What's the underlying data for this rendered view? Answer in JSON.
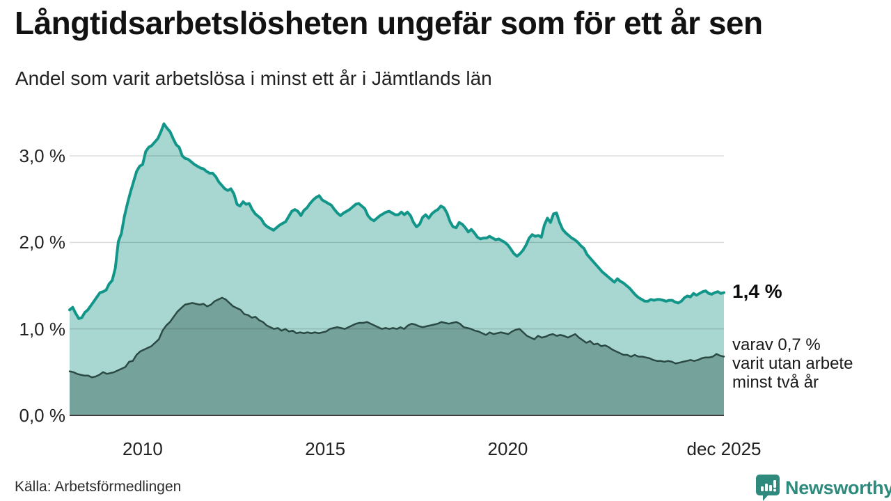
{
  "header": {
    "title": "Långtidsarbetslösheten ungefär som för ett år sen",
    "subtitle": "Andel som varit arbetslösa i minst ett år i Jämtlands län"
  },
  "chart_data": {
    "type": "area",
    "title": "Långtidsarbetslösheten ungefär som för ett år sen",
    "subtitle": "Andel som varit arbetslösa i minst ett år i Jämtlands län",
    "xlabel": "",
    "ylabel": "",
    "unit": "%",
    "grid": true,
    "legend": "none",
    "x_start": 2008.0,
    "x_end": 2025.92,
    "ylim": [
      0,
      3.5
    ],
    "x_ticks": [
      {
        "label": "2010",
        "year": 2010.0
      },
      {
        "label": "2015",
        "year": 2015.0
      },
      {
        "label": "2020",
        "year": 2020.0
      },
      {
        "label": "dec 2025",
        "year": 2025.92
      }
    ],
    "y_ticks": [
      {
        "label": "0,0 %",
        "value": 0
      },
      {
        "label": "1,0 %",
        "value": 1
      },
      {
        "label": "2,0 %",
        "value": 2
      },
      {
        "label": "3,0 %",
        "value": 3
      }
    ],
    "series": [
      {
        "name": "Arbetslösa minst ett år",
        "line_color": "#12968a",
        "fill_color": "#a8d7d1",
        "line_width": 4,
        "last_value": 1.4,
        "values": [
          1.22,
          1.25,
          1.18,
          1.12,
          1.13,
          1.19,
          1.22,
          1.27,
          1.32,
          1.37,
          1.42,
          1.43,
          1.45,
          1.52,
          1.56,
          1.7,
          2.01,
          2.1,
          2.3,
          2.45,
          2.58,
          2.7,
          2.82,
          2.88,
          2.9,
          3.05,
          3.1,
          3.12,
          3.16,
          3.2,
          3.28,
          3.37,
          3.32,
          3.28,
          3.2,
          3.13,
          3.1,
          3.0,
          2.97,
          2.96,
          2.93,
          2.9,
          2.88,
          2.86,
          2.85,
          2.82,
          2.8,
          2.8,
          2.76,
          2.7,
          2.66,
          2.62,
          2.6,
          2.62,
          2.56,
          2.44,
          2.42,
          2.47,
          2.44,
          2.45,
          2.38,
          2.33,
          2.3,
          2.27,
          2.21,
          2.18,
          2.16,
          2.14,
          2.17,
          2.2,
          2.22,
          2.24,
          2.3,
          2.36,
          2.38,
          2.36,
          2.31,
          2.37,
          2.4,
          2.45,
          2.49,
          2.52,
          2.54,
          2.49,
          2.47,
          2.45,
          2.43,
          2.38,
          2.34,
          2.31,
          2.34,
          2.36,
          2.38,
          2.41,
          2.44,
          2.45,
          2.42,
          2.39,
          2.31,
          2.27,
          2.25,
          2.28,
          2.31,
          2.33,
          2.35,
          2.36,
          2.34,
          2.32,
          2.32,
          2.35,
          2.32,
          2.35,
          2.31,
          2.23,
          2.18,
          2.21,
          2.29,
          2.32,
          2.28,
          2.33,
          2.36,
          2.38,
          2.42,
          2.4,
          2.34,
          2.24,
          2.18,
          2.17,
          2.23,
          2.21,
          2.17,
          2.12,
          2.15,
          2.11,
          2.06,
          2.04,
          2.05,
          2.05,
          2.07,
          2.05,
          2.03,
          2.04,
          2.02,
          2.0,
          1.97,
          1.92,
          1.87,
          1.84,
          1.87,
          1.91,
          1.97,
          2.05,
          2.09,
          2.07,
          2.08,
          2.06,
          2.2,
          2.28,
          2.23,
          2.33,
          2.34,
          2.23,
          2.15,
          2.11,
          2.08,
          2.05,
          2.03,
          2.0,
          1.96,
          1.93,
          1.86,
          1.82,
          1.78,
          1.74,
          1.7,
          1.66,
          1.63,
          1.6,
          1.57,
          1.54,
          1.58,
          1.55,
          1.53,
          1.5,
          1.47,
          1.43,
          1.39,
          1.36,
          1.34,
          1.32,
          1.32,
          1.34,
          1.33,
          1.34,
          1.34,
          1.33,
          1.32,
          1.33,
          1.33,
          1.31,
          1.3,
          1.32,
          1.36,
          1.38,
          1.37,
          1.41,
          1.39,
          1.41,
          1.43,
          1.44,
          1.41,
          1.4,
          1.42,
          1.43,
          1.41,
          1.42
        ]
      },
      {
        "name": "Arbetslösa minst två år",
        "line_color": "#2b4a44",
        "fill_color": "#75a29b",
        "line_width": 2.5,
        "last_value": 0.7,
        "values": [
          0.51,
          0.5,
          0.48,
          0.47,
          0.46,
          0.46,
          0.44,
          0.45,
          0.47,
          0.5,
          0.48,
          0.49,
          0.5,
          0.52,
          0.54,
          0.56,
          0.62,
          0.63,
          0.7,
          0.74,
          0.76,
          0.78,
          0.8,
          0.84,
          0.88,
          0.98,
          1.04,
          1.08,
          1.14,
          1.2,
          1.24,
          1.28,
          1.29,
          1.3,
          1.29,
          1.28,
          1.29,
          1.26,
          1.28,
          1.32,
          1.34,
          1.36,
          1.34,
          1.3,
          1.26,
          1.24,
          1.22,
          1.17,
          1.16,
          1.13,
          1.14,
          1.1,
          1.08,
          1.04,
          1.02,
          1.0,
          1.01,
          0.98,
          1.0,
          0.97,
          0.98,
          0.95,
          0.96,
          0.95,
          0.96,
          0.95,
          0.96,
          0.95,
          0.96,
          0.97,
          1.0,
          1.01,
          1.02,
          1.01,
          1.0,
          1.02,
          1.04,
          1.06,
          1.07,
          1.07,
          1.08,
          1.06,
          1.04,
          1.02,
          1.0,
          1.01,
          1.0,
          1.01,
          1.0,
          1.02,
          1.0,
          1.04,
          1.06,
          1.05,
          1.03,
          1.02,
          1.03,
          1.04,
          1.05,
          1.06,
          1.08,
          1.07,
          1.06,
          1.07,
          1.08,
          1.06,
          1.02,
          1.01,
          1.0,
          0.98,
          0.97,
          0.95,
          0.93,
          0.96,
          0.94,
          0.95,
          0.96,
          0.95,
          0.94,
          0.97,
          0.99,
          1.0,
          0.96,
          0.92,
          0.9,
          0.88,
          0.92,
          0.9,
          0.91,
          0.93,
          0.94,
          0.92,
          0.93,
          0.92,
          0.9,
          0.92,
          0.94,
          0.9,
          0.87,
          0.84,
          0.86,
          0.82,
          0.83,
          0.8,
          0.81,
          0.79,
          0.76,
          0.74,
          0.72,
          0.7,
          0.7,
          0.68,
          0.7,
          0.68,
          0.68,
          0.67,
          0.66,
          0.64,
          0.63,
          0.63,
          0.62,
          0.63,
          0.62,
          0.6,
          0.61,
          0.62,
          0.63,
          0.64,
          0.63,
          0.64,
          0.66,
          0.67,
          0.67,
          0.68,
          0.71,
          0.69,
          0.68
        ]
      }
    ],
    "annotations": {
      "value_label": "1,4 %",
      "note_lines": [
        "varav 0,7 %",
        "varit utan arbete",
        "minst två år"
      ]
    }
  },
  "footer": {
    "source": "Källa: Arbetsförmedlingen",
    "brand": "Newsworthy",
    "brand_color": "#2f8a7e"
  }
}
